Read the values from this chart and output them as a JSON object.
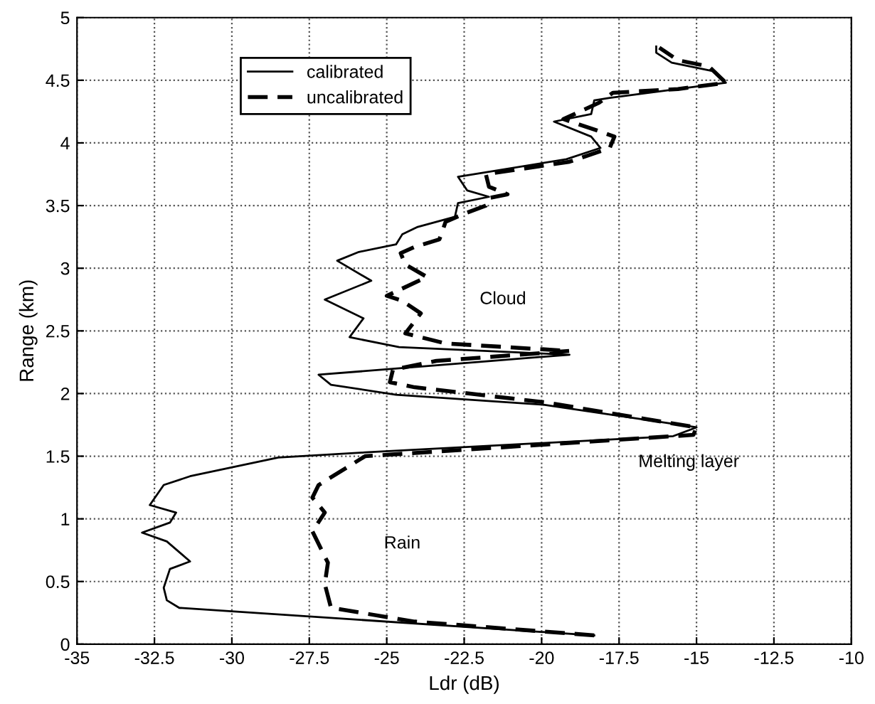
{
  "chart_data": {
    "type": "line",
    "xlabel": "Ldr (dB)",
    "ylabel": "Range (km)",
    "xlim": [
      -35,
      -10
    ],
    "xticks": [
      -35,
      -32.5,
      -30,
      -27.5,
      -25,
      -22.5,
      -20,
      -17.5,
      -15,
      -12.5,
      -10
    ],
    "ylim": [
      0,
      5
    ],
    "yticks": [
      0,
      0.5,
      1,
      1.5,
      2,
      2.5,
      3,
      3.5,
      4,
      4.5,
      5
    ],
    "grid": true,
    "legend": "top left",
    "marker": "none",
    "series": [
      {
        "name": "calibrated",
        "color": "#000000",
        "line_style": "solid",
        "values": [
          0.07,
          0.29,
          0.35,
          0.45,
          0.6,
          0.66,
          0.82,
          0.89,
          0.97,
          1.05,
          1.11,
          1.27,
          1.34,
          1.49,
          1.53,
          1.66,
          1.73,
          1.91,
          1.99,
          2.07,
          2.15,
          2.31,
          2.37,
          2.45,
          2.6,
          2.75,
          2.9,
          3.06,
          3.13,
          3.19,
          3.27,
          3.33,
          3.41,
          3.52,
          3.57,
          3.62,
          3.73,
          3.87,
          3.96,
          4.05,
          4.17,
          4.23,
          4.34,
          4.36,
          4.43,
          4.48,
          4.57,
          4.64,
          4.72,
          4.77
        ],
        "x": [
          -18.3,
          -31.7,
          -32.1,
          -32.2,
          -32.0,
          -31.35,
          -32.1,
          -32.9,
          -32.0,
          -31.8,
          -32.65,
          -32.2,
          -31.35,
          -28.5,
          -25.7,
          -15.75,
          -15.0,
          -19.9,
          -24.7,
          -26.8,
          -27.2,
          -19.1,
          -24.6,
          -26.2,
          -25.75,
          -27.0,
          -25.5,
          -26.6,
          -25.9,
          -24.7,
          -24.5,
          -24.0,
          -22.8,
          -22.7,
          -21.7,
          -22.4,
          -22.7,
          -19.2,
          -18.1,
          -18.4,
          -19.6,
          -18.4,
          -18.3,
          -17.8,
          -15.6,
          -14.05,
          -14.4,
          -15.8,
          -16.3,
          -16.3
        ]
      },
      {
        "name": "uncalibrated",
        "color": "#000000",
        "line_style": "dashed",
        "values": [
          0.07,
          0.18,
          0.29,
          0.48,
          0.65,
          0.9,
          1.05,
          1.17,
          1.27,
          1.5,
          1.67,
          1.73,
          1.93,
          2.05,
          2.09,
          2.19,
          2.26,
          2.34,
          2.4,
          2.48,
          2.64,
          2.74,
          2.78,
          2.93,
          3.03,
          3.12,
          3.17,
          3.23,
          3.37,
          3.43,
          3.5,
          3.56,
          3.59,
          3.65,
          3.75,
          3.85,
          3.96,
          4.05,
          4.09,
          4.19,
          4.32,
          4.4,
          4.43,
          4.48,
          4.61,
          4.66,
          4.76
        ],
        "x": [
          -18.3,
          -24.1,
          -26.8,
          -27.0,
          -26.9,
          -27.4,
          -27.0,
          -27.4,
          -27.2,
          -25.7,
          -15.1,
          -15.0,
          -19.9,
          -24.1,
          -24.9,
          -24.8,
          -23.4,
          -19.1,
          -23.1,
          -24.4,
          -23.9,
          -24.5,
          -25.0,
          -23.7,
          -24.4,
          -24.55,
          -24.1,
          -23.3,
          -23.1,
          -22.55,
          -21.8,
          -21.7,
          -21.1,
          -21.7,
          -21.8,
          -19.1,
          -17.8,
          -17.65,
          -18.1,
          -19.3,
          -18.15,
          -17.7,
          -15.6,
          -14.05,
          -14.6,
          -15.6,
          -16.2
        ]
      }
    ],
    "annotations": [
      "Cloud",
      "Melting layer",
      "Rain"
    ]
  }
}
